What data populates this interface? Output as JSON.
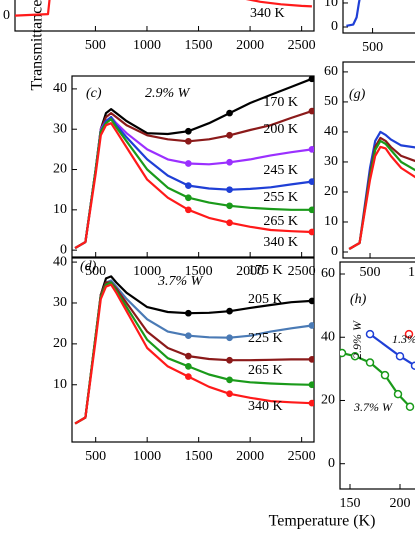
{
  "ylabel": "Transmittance",
  "chart_data": [
    {
      "type": "line",
      "x": [
        -280,
        40,
        70,
        1900,
        2100,
        2300,
        2500,
        2600
      ],
      "series": [
        {
          "name": "340 K",
          "color": "#ff1a1a",
          "values": [
            0,
            0.3,
            6,
            3.5,
            2.7,
            2.2,
            1.9,
            1.8
          ]
        }
      ],
      "xlim": [
        -280,
        2620
      ],
      "ylim": [
        -3,
        5
      ],
      "xticks": [
        500,
        1000,
        1500,
        2000,
        2500
      ],
      "yticks": [
        0
      ]
    },
    {
      "type": "line",
      "x": [
        270,
        330,
        360,
        380,
        420
      ],
      "series": [
        {
          "color": "#1f3fd6",
          "values": [
            0.5,
            1,
            4,
            10,
            20
          ]
        }
      ],
      "xlim": [
        240,
        2500
      ],
      "ylim": [
        -2.5,
        15.4
      ],
      "xticks": [
        500,
        1000
      ],
      "yticks": [
        0,
        10
      ]
    },
    {
      "type": "line",
      "panel": "(c)",
      "annotation": "2.9% W",
      "x": [
        300,
        400,
        500,
        550,
        600,
        650,
        700,
        800,
        1000,
        1200,
        1400,
        1600,
        1800,
        2000,
        2200,
        2400,
        2600
      ],
      "series": [
        {
          "name": "170 K",
          "color": "#000000",
          "values": [
            0.5,
            2,
            20,
            30,
            34,
            35,
            34,
            32,
            29,
            28.8,
            29.5,
            31.5,
            34,
            36.5,
            38.5,
            40.5,
            42.5
          ]
        },
        {
          "name": "200 K",
          "color": "#8b1a1a",
          "values": [
            0.5,
            2,
            20,
            30,
            33,
            34,
            33,
            31,
            28.5,
            27.5,
            27,
            27.5,
            28.5,
            29.8,
            31,
            32.8,
            34.5
          ]
        },
        {
          "name": "245 K",
          "color": "#9b30ff",
          "values": [
            0.5,
            2,
            20,
            30,
            32,
            33,
            31.5,
            29,
            25,
            22.5,
            21.5,
            21.3,
            21.8,
            22.5,
            23.5,
            24.3,
            25
          ]
        },
        {
          "name": "255 K",
          "color": "#1f3fd6",
          "values": [
            0.5,
            2,
            20,
            29.5,
            32,
            33,
            31,
            28,
            22.5,
            18.5,
            16,
            15.3,
            15,
            15.2,
            15.6,
            16.3,
            17
          ]
        },
        {
          "name": "265 K",
          "color": "#1a9a1a",
          "values": [
            0.5,
            2,
            20,
            29.5,
            31.5,
            32.5,
            30.5,
            27,
            20,
            15.5,
            13,
            11.8,
            11,
            10.5,
            10.2,
            10,
            10
          ]
        },
        {
          "name": "340 K",
          "color": "#ff1a1a",
          "values": [
            0.5,
            2,
            19,
            28.5,
            31,
            31.5,
            29.5,
            25.5,
            17.5,
            13,
            10,
            8,
            6.8,
            5.8,
            5,
            4.7,
            4.5
          ]
        }
      ],
      "xlim": [
        270,
        2620
      ],
      "ylim": [
        -1.7,
        43.2
      ],
      "xticks": [
        500,
        1000,
        1500,
        2000,
        2500
      ],
      "yticks": [
        0,
        10,
        20,
        30,
        40
      ]
    },
    {
      "type": "line",
      "panel": "(g)",
      "x": [
        300,
        400,
        500,
        550,
        600,
        650,
        700,
        800,
        1000,
        1200
      ],
      "series": [
        {
          "color": "#1f3fd6",
          "values": [
            1,
            3,
            28,
            37,
            40,
            39,
            37.5,
            35.5,
            34.5,
            34
          ]
        },
        {
          "color": "#8b1a1a",
          "values": [
            1,
            3,
            26,
            35,
            38,
            37,
            35,
            32,
            29.5,
            28.5
          ]
        },
        {
          "color": "#1a9a1a",
          "values": [
            1,
            3,
            25,
            34,
            37,
            36,
            34,
            30,
            26,
            24
          ]
        },
        {
          "color": "#ff1a1a",
          "values": [
            1,
            3,
            24,
            32,
            35,
            34.5,
            32,
            28,
            23.5,
            21.5
          ]
        }
      ],
      "xlim": [
        240,
        2500
      ],
      "ylim": [
        -2,
        63.3
      ],
      "xticks": [
        500,
        1000
      ],
      "yticks": [
        0,
        10,
        20,
        30,
        40,
        50,
        60
      ]
    },
    {
      "type": "line",
      "panel": "(d)",
      "annotation": "3.7% W",
      "x": [
        300,
        400,
        500,
        550,
        600,
        650,
        700,
        800,
        1000,
        1200,
        1400,
        1600,
        1800,
        2000,
        2200,
        2400,
        2600
      ],
      "series": [
        {
          "name": "175 K",
          "color": "#000000",
          "values": [
            0.5,
            2,
            22,
            32,
            36,
            36.5,
            35,
            32.5,
            29,
            27.8,
            27.5,
            27.6,
            28,
            28.8,
            29.5,
            30.2,
            30.5
          ]
        },
        {
          "name": "205 K",
          "color": "#4a7ab5",
          "values": [
            0.5,
            2,
            22,
            32,
            35,
            35.5,
            34,
            31,
            26,
            23,
            22,
            21.6,
            21.5,
            22,
            23,
            23.8,
            24.5
          ]
        },
        {
          "name": "225 K",
          "color": "#8b1a1a",
          "values": [
            0.5,
            2,
            22,
            32,
            35,
            35,
            33.5,
            30,
            23,
            19,
            17,
            16.3,
            16,
            16,
            16.1,
            16.2,
            16.2
          ]
        },
        {
          "name": "265 K",
          "color": "#1a9a1a",
          "values": [
            0.5,
            2,
            22,
            31.5,
            34.5,
            35,
            33,
            29,
            21,
            16.5,
            14.5,
            12.5,
            11.2,
            10.6,
            10.3,
            10.1,
            10
          ]
        },
        {
          "name": "340 K",
          "color": "#ff1a1a",
          "values": [
            0.5,
            2,
            21,
            31,
            34,
            34.5,
            32.5,
            28,
            19,
            14.5,
            12,
            9.5,
            7.8,
            6.8,
            6,
            5.7,
            5.5
          ]
        }
      ],
      "xlim": [
        270,
        2620
      ],
      "ylim": [
        -4,
        41
      ],
      "xticks": [
        500,
        1000,
        1500,
        2000,
        2500
      ],
      "yticks": [
        10,
        20,
        30,
        40
      ]
    },
    {
      "type": "line",
      "panel": "(h)",
      "xlabel": "Temperature (K)",
      "series": [
        {
          "name": "2.9% W",
          "color": "#1f3fd6",
          "x": [
            170,
            200,
            215
          ],
          "values": [
            41,
            34,
            31
          ]
        },
        {
          "name": "3.7% W",
          "color": "#1a9a1a",
          "x": [
            142,
            155,
            170,
            185,
            198,
            210
          ],
          "values": [
            35,
            34,
            32,
            28,
            22,
            18
          ]
        },
        {
          "name": "1.3%",
          "color": "#ff1a1a",
          "x": [
            209
          ],
          "values": [
            41
          ]
        }
      ],
      "xlim": [
        140,
        420
      ],
      "ylim": [
        -8,
        63.8
      ],
      "xticks": [
        150,
        200
      ],
      "yticks": [
        0,
        20,
        40,
        60
      ]
    }
  ]
}
